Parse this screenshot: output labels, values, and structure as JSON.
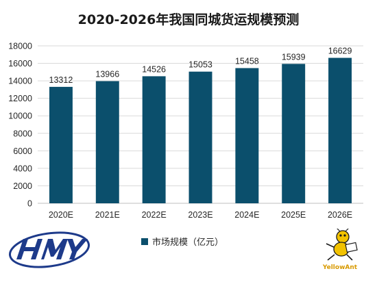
{
  "colors": {
    "bar": "#0b4f6c",
    "grid": "#d9d9d9",
    "axis_text": "#262626"
  },
  "chart_data": {
    "type": "bar",
    "title": "2020-2026年我国同城货运规模预测",
    "categories": [
      "2020E",
      "2021E",
      "2022E",
      "2023E",
      "2024E",
      "2025E",
      "2026E"
    ],
    "series": [
      {
        "name": "市场规模（亿元）",
        "values": [
          13312,
          13966,
          14526,
          15053,
          15458,
          15939,
          16629
        ]
      }
    ],
    "ylim": [
      0,
      18000
    ],
    "yticks": [
      0,
      2000,
      4000,
      6000,
      8000,
      10000,
      12000,
      14000,
      16000,
      18000
    ],
    "grid": true,
    "legend_position": "bottom"
  },
  "logos": {
    "left": {
      "icon": "hmy-logo"
    },
    "right": {
      "icon": "yellowant-mascot-icon",
      "text": "YellowAnt"
    }
  }
}
